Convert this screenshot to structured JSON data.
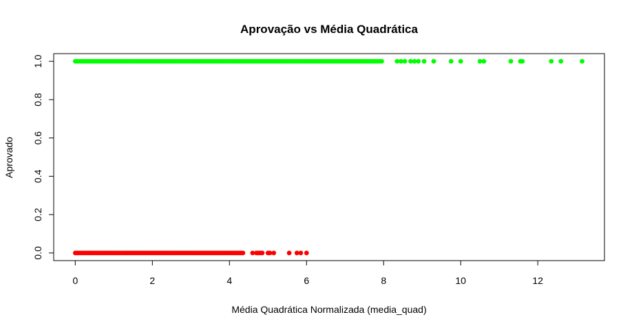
{
  "chart_data": {
    "type": "scatter",
    "title": "Aprovação vs Média Quadrática",
    "xlabel": "Média Quadrática Normalizada (media_quad)",
    "ylabel": "Aprovado",
    "xlim": [
      -0.56,
      13.73
    ],
    "ylim": [
      -0.04,
      1.04
    ],
    "x_ticks": [
      0,
      2,
      4,
      6,
      8,
      10,
      12
    ],
    "y_ticks": [
      0.0,
      0.2,
      0.4,
      0.6,
      0.8,
      1.0
    ],
    "x_tick_labels": [
      "0",
      "2",
      "4",
      "6",
      "8",
      "10",
      "12"
    ],
    "y_tick_labels": [
      "0.0",
      "0.2",
      "0.4",
      "0.6",
      "0.8",
      "1.0"
    ],
    "grid": false,
    "series": [
      {
        "color": "#ff0000",
        "y": 0,
        "x": [
          0.0,
          0.05,
          0.1,
          0.15,
          0.2,
          0.25,
          0.3,
          0.35,
          0.4,
          0.45,
          0.5,
          0.55,
          0.6,
          0.65,
          0.7,
          0.75,
          0.8,
          0.85,
          0.9,
          0.95,
          1.0,
          1.05,
          1.1,
          1.15,
          1.2,
          1.25,
          1.3,
          1.35,
          1.4,
          1.45,
          1.5,
          1.55,
          1.6,
          1.65,
          1.7,
          1.75,
          1.8,
          1.85,
          1.9,
          1.95,
          2.0,
          2.05,
          2.1,
          2.15,
          2.2,
          2.25,
          2.3,
          2.35,
          2.4,
          2.45,
          2.5,
          2.55,
          2.6,
          2.65,
          2.7,
          2.75,
          2.8,
          2.85,
          2.9,
          2.95,
          3.0,
          3.05,
          3.1,
          3.15,
          3.2,
          3.25,
          3.3,
          3.35,
          3.4,
          3.45,
          3.5,
          3.55,
          3.6,
          3.65,
          3.7,
          3.75,
          3.8,
          3.85,
          3.9,
          3.95,
          4.0,
          4.05,
          4.1,
          4.15,
          4.2,
          4.25,
          4.3,
          4.35,
          4.6,
          4.7,
          4.75,
          4.8,
          4.85,
          5.0,
          5.05,
          5.15,
          5.55,
          5.75,
          5.85,
          6.0
        ]
      },
      {
        "color": "#00ff00",
        "y": 1,
        "x": [
          0.0,
          0.05,
          0.1,
          0.15,
          0.2,
          0.25,
          0.3,
          0.35,
          0.4,
          0.45,
          0.5,
          0.55,
          0.6,
          0.65,
          0.7,
          0.75,
          0.8,
          0.85,
          0.9,
          0.95,
          1.0,
          1.05,
          1.1,
          1.15,
          1.2,
          1.25,
          1.3,
          1.35,
          1.4,
          1.45,
          1.5,
          1.55,
          1.6,
          1.65,
          1.7,
          1.75,
          1.8,
          1.85,
          1.9,
          1.95,
          2.0,
          2.05,
          2.1,
          2.15,
          2.2,
          2.25,
          2.3,
          2.35,
          2.4,
          2.45,
          2.5,
          2.55,
          2.6,
          2.65,
          2.7,
          2.75,
          2.8,
          2.85,
          2.9,
          2.95,
          3.0,
          3.05,
          3.1,
          3.15,
          3.2,
          3.25,
          3.3,
          3.35,
          3.4,
          3.45,
          3.5,
          3.55,
          3.6,
          3.65,
          3.7,
          3.75,
          3.8,
          3.85,
          3.9,
          3.95,
          4.0,
          4.05,
          4.1,
          4.15,
          4.2,
          4.25,
          4.3,
          4.35,
          4.4,
          4.45,
          4.5,
          4.55,
          4.6,
          4.65,
          4.7,
          4.75,
          4.8,
          4.85,
          4.9,
          4.95,
          5.0,
          5.05,
          5.1,
          5.15,
          5.2,
          5.25,
          5.3,
          5.35,
          5.4,
          5.45,
          5.5,
          5.55,
          5.6,
          5.65,
          5.7,
          5.75,
          5.8,
          5.85,
          5.9,
          5.95,
          6.0,
          6.05,
          6.1,
          6.15,
          6.2,
          6.25,
          6.3,
          6.35,
          6.4,
          6.45,
          6.5,
          6.55,
          6.6,
          6.65,
          6.7,
          6.75,
          6.8,
          6.85,
          6.9,
          6.95,
          7.0,
          7.05,
          7.1,
          7.15,
          7.2,
          7.25,
          7.3,
          7.35,
          7.4,
          7.45,
          7.5,
          7.55,
          7.6,
          7.65,
          7.7,
          7.75,
          7.8,
          7.85,
          7.9,
          7.95,
          8.35,
          8.45,
          8.55,
          8.7,
          8.8,
          8.9,
          9.05,
          9.3,
          9.75,
          10.0,
          10.5,
          10.6,
          11.3,
          11.55,
          11.6,
          12.35,
          12.6,
          13.15
        ]
      }
    ]
  }
}
